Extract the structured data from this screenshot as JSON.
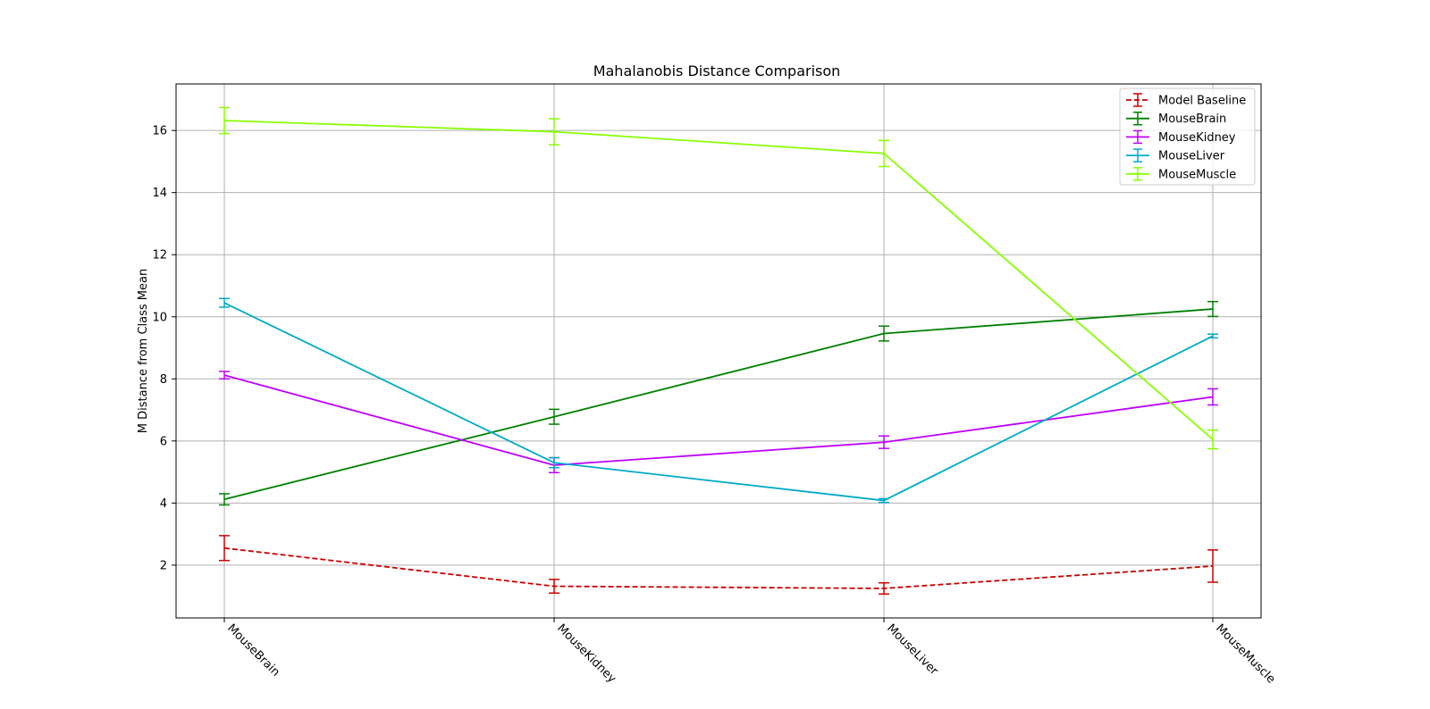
{
  "chart_data": {
    "type": "line",
    "title": "Mahalanobis Distance Comparison",
    "xlabel": "",
    "ylabel": "M Distance from Class Mean",
    "categories": [
      "MouseBrain",
      "MouseKidney",
      "MouseLiver",
      "MouseMuscle"
    ],
    "ylim": [
      0.3,
      17.5
    ],
    "yticks": [
      2,
      4,
      6,
      8,
      10,
      12,
      14,
      16
    ],
    "grid": true,
    "legend_position": "top-right",
    "series": [
      {
        "name": "Model Baseline",
        "color": "#cc0000",
        "dashed": true,
        "values": [
          2.55,
          1.32,
          1.25,
          1.97
        ],
        "errors": [
          0.4,
          0.22,
          0.18,
          0.52
        ]
      },
      {
        "name": "MouseBrain",
        "color": "#008000",
        "dashed": false,
        "values": [
          4.12,
          6.78,
          9.46,
          10.25
        ],
        "errors": [
          0.18,
          0.24,
          0.24,
          0.24
        ]
      },
      {
        "name": "MouseKidney",
        "color": "#bf00ff",
        "dashed": false,
        "values": [
          8.12,
          5.22,
          5.96,
          7.42
        ],
        "errors": [
          0.12,
          0.24,
          0.2,
          0.26
        ]
      },
      {
        "name": "MouseLiver",
        "color": "#00aac8",
        "dashed": false,
        "values": [
          10.45,
          5.3,
          4.08,
          9.38
        ],
        "errors": [
          0.14,
          0.16,
          0.06,
          0.06
        ]
      },
      {
        "name": "MouseMuscle",
        "color": "#88ff00",
        "dashed": false,
        "values": [
          16.32,
          15.96,
          15.26,
          6.05
        ],
        "errors": [
          0.42,
          0.42,
          0.42,
          0.3
        ]
      }
    ]
  }
}
